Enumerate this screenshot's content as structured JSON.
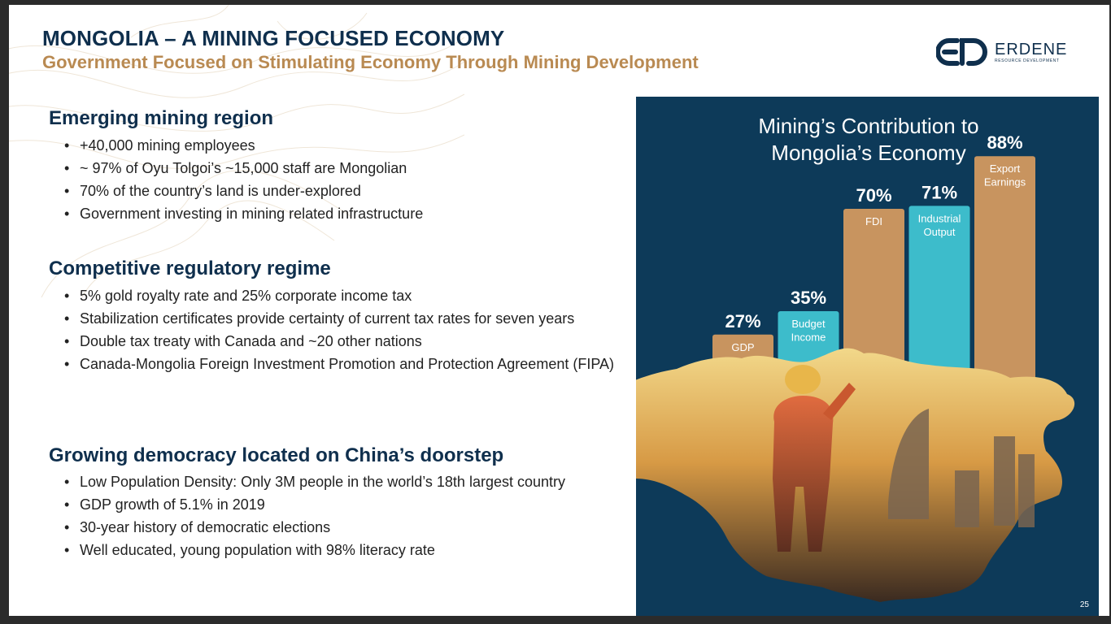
{
  "header": {
    "title": "MONGOLIA – A MINING FOCUSED ECONOMY",
    "subtitle": "Government Focused on Stimulating Economy Through Mining Development"
  },
  "logo": {
    "monogram": "ERD",
    "word": "ERDENE",
    "tagline": "RESOURCE DEVELOPMENT"
  },
  "sections": [
    {
      "heading": "Emerging mining region",
      "bullets": [
        "+40,000 mining employees",
        "~ 97% of Oyu Tolgoi’s ~15,000 staff are Mongolian",
        "70% of the country’s land is under-explored",
        "Government investing in mining related infrastructure"
      ]
    },
    {
      "heading": "Competitive regulatory regime",
      "bullets": [
        "5% gold royalty rate and 25% corporate income tax",
        "Stabilization certificates provide certainty of current tax rates for seven years",
        "Double tax treaty with Canada and ~20 other nations",
        "Canada-Mongolia Foreign Investment Promotion and Protection Agreement (FIPA)"
      ]
    },
    {
      "heading": "Growing democracy located on China’s doorstep",
      "bullets": [
        "Low Population Density: Only 3M people in the world’s 18th largest country",
        "GDP growth of 5.1% in 2019",
        "30-year history of democratic elections",
        "Well educated, young population with 98% literacy rate"
      ]
    }
  ],
  "page_number": "25",
  "chart_data": {
    "type": "bar",
    "title": "Mining’s Contribution to Mongolia’s Economy",
    "title_lines": [
      "Mining’s Contribution to",
      "Mongolia’s Economy"
    ],
    "categories": [
      "GDP",
      "Budget Income",
      "FDI",
      "Industrial Output",
      "Export Earnings"
    ],
    "category_lines": [
      [
        "GDP"
      ],
      [
        "Budget",
        "Income"
      ],
      [
        "FDI"
      ],
      [
        "Industrial",
        "Output"
      ],
      [
        "Export",
        "Earnings"
      ]
    ],
    "values": [
      27,
      35,
      70,
      71,
      88
    ],
    "value_labels": [
      "27%",
      "35%",
      "70%",
      "71%",
      "88%"
    ],
    "bar_colors": [
      "#c8945f",
      "#3dbccb",
      "#c8945f",
      "#3dbccb",
      "#c8945f"
    ],
    "ylim": [
      0,
      100
    ],
    "grid": false,
    "legend": "none"
  },
  "colors": {
    "navy": "#0f2f4d",
    "gold": "#b98a52",
    "panel": "#0d3a59",
    "tan_bar": "#c8945f",
    "teal_bar": "#3dbccb"
  }
}
